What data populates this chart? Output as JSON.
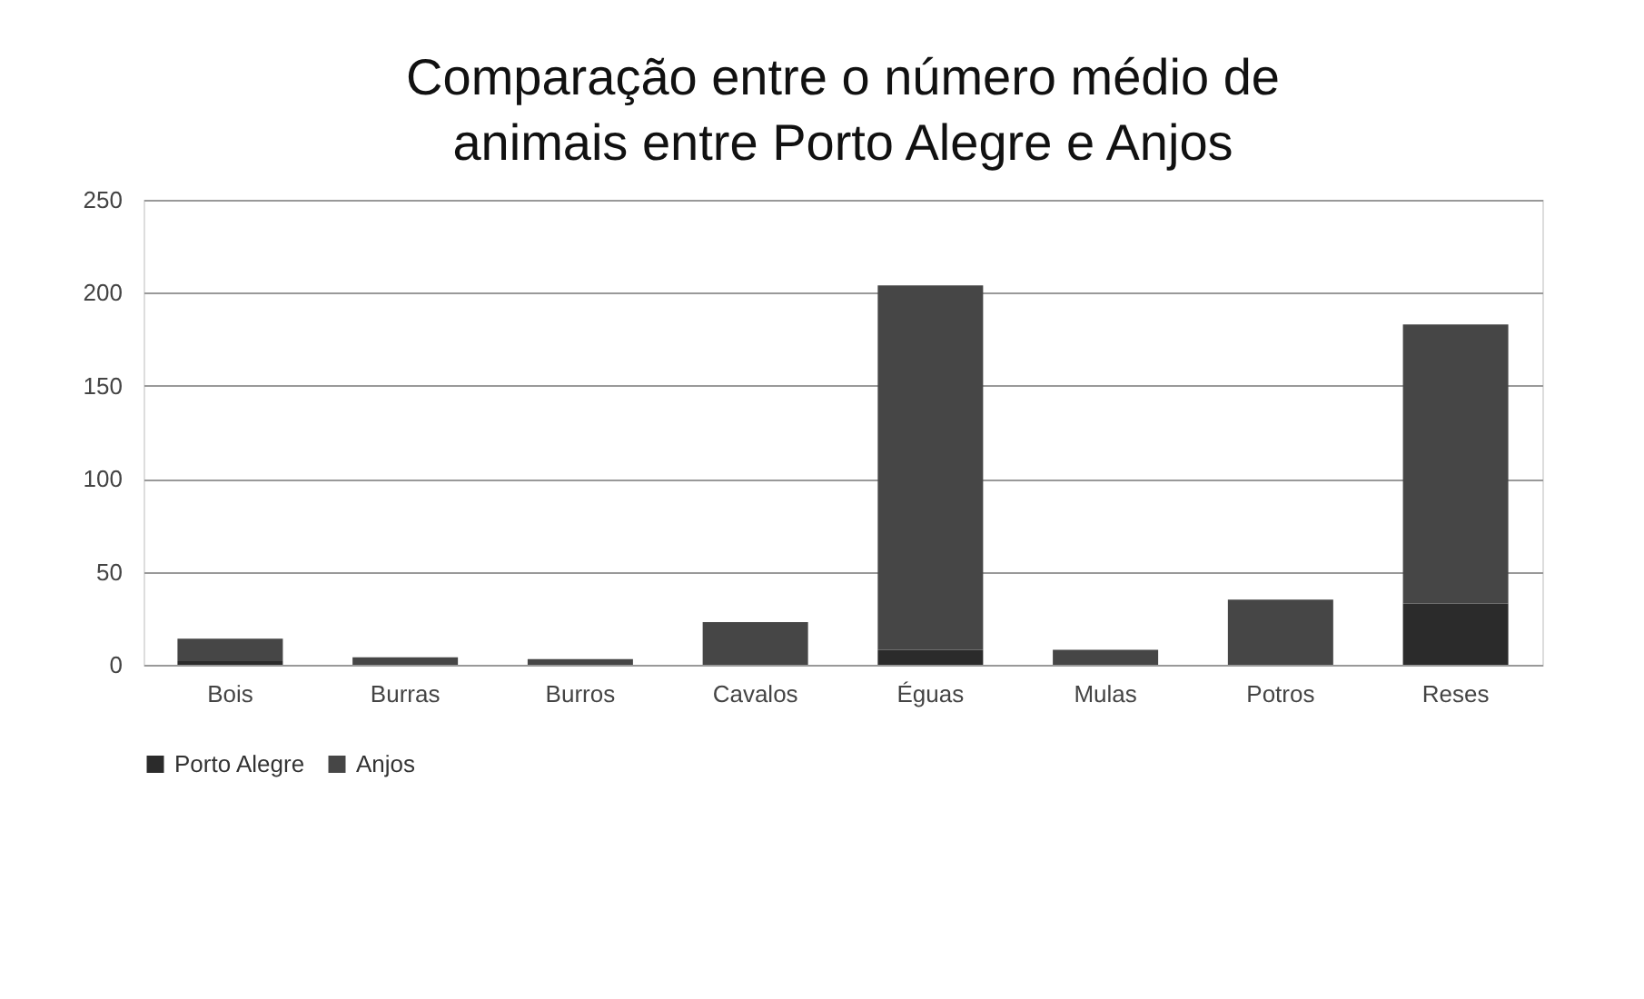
{
  "chart_data": {
    "type": "bar",
    "title": [
      "Comparação entre o número médio de",
      "animais entre Porto Alegre e Anjos"
    ],
    "categories": [
      "Bois",
      "Burras",
      "Burros",
      "Cavalos",
      "Éguas",
      "Mulas",
      "Potros",
      "Reses"
    ],
    "series": [
      {
        "name": "Porto Alegre",
        "color": "#2b2b2b",
        "values": [
          2,
          0,
          0,
          0,
          8,
          0,
          0,
          33
        ]
      },
      {
        "name": "Anjos",
        "color": "#464646",
        "values": [
          12,
          4,
          3,
          23,
          196,
          8,
          35,
          150
        ]
      }
    ],
    "stacked": true,
    "ylim": [
      0,
      250
    ],
    "yticks": [
      0,
      50,
      100,
      150,
      200,
      250
    ],
    "grid": "y",
    "legend": "bottom"
  }
}
